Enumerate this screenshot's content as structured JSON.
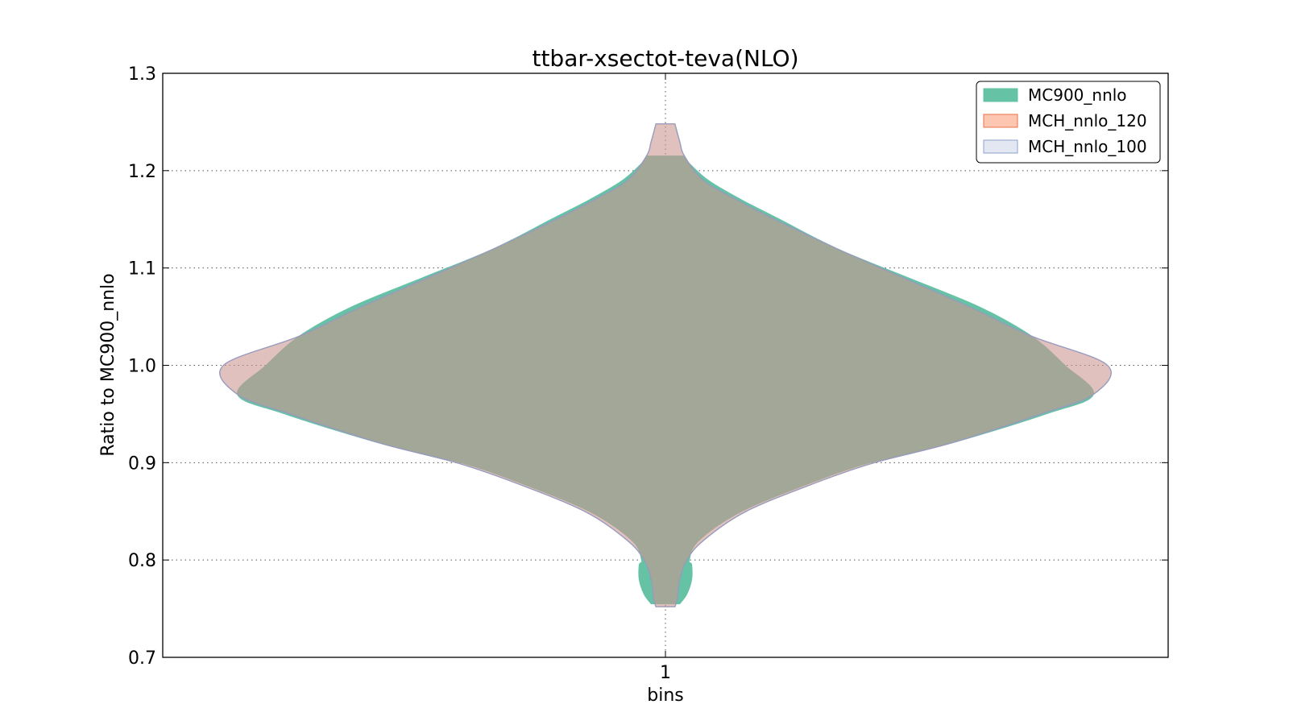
{
  "chart_data": {
    "type": "violin",
    "title": "ttbar-xsectot-teva(NLO)",
    "xlabel": "bins",
    "ylabel": "Ratio to MC900_nnlo",
    "categories": [
      "1"
    ],
    "ylim": [
      0.7,
      1.3
    ],
    "yticks": [
      0.7,
      0.8,
      0.9,
      1.0,
      1.1,
      1.2,
      1.3
    ],
    "ytick_labels": [
      "0.7",
      "0.8",
      "0.9",
      "1.0",
      "1.1",
      "1.2",
      "1.3"
    ],
    "grid": true,
    "legend_position": "top-right",
    "series": [
      {
        "name": "MC900_nnlo",
        "fill": "#66c2a5",
        "stroke": "#66c2a5",
        "opacity": 1.0,
        "profile": [
          [
            0.755,
            0.03
          ],
          [
            0.765,
            0.045
          ],
          [
            0.78,
            0.055
          ],
          [
            0.795,
            0.055
          ],
          [
            0.8,
            0.05
          ],
          [
            0.82,
            0.07
          ],
          [
            0.85,
            0.16
          ],
          [
            0.88,
            0.31
          ],
          [
            0.9,
            0.43
          ],
          [
            0.92,
            0.6
          ],
          [
            0.95,
            0.8
          ],
          [
            0.97,
            0.9
          ],
          [
            1.0,
            0.84
          ],
          [
            1.03,
            0.77
          ],
          [
            1.06,
            0.66
          ],
          [
            1.09,
            0.51
          ],
          [
            1.12,
            0.36
          ],
          [
            1.15,
            0.24
          ],
          [
            1.17,
            0.16
          ],
          [
            1.19,
            0.09
          ],
          [
            1.21,
            0.045
          ],
          [
            1.215,
            0.04
          ]
        ]
      },
      {
        "name": "MCH_nnlo_120",
        "fill": "#fc8d62",
        "stroke": "#e8704a",
        "opacity": 0.45,
        "profile": [
          [
            0.752,
            0.02
          ],
          [
            0.76,
            0.025
          ],
          [
            0.78,
            0.03
          ],
          [
            0.8,
            0.045
          ],
          [
            0.82,
            0.08
          ],
          [
            0.85,
            0.17
          ],
          [
            0.88,
            0.32
          ],
          [
            0.9,
            0.44
          ],
          [
            0.92,
            0.6
          ],
          [
            0.95,
            0.79
          ],
          [
            0.97,
            0.9
          ],
          [
            1.0,
            0.93
          ],
          [
            1.03,
            0.77
          ],
          [
            1.06,
            0.64
          ],
          [
            1.09,
            0.5
          ],
          [
            1.12,
            0.36
          ],
          [
            1.15,
            0.23
          ],
          [
            1.17,
            0.15
          ],
          [
            1.19,
            0.08
          ],
          [
            1.215,
            0.04
          ],
          [
            1.23,
            0.03
          ],
          [
            1.248,
            0.02
          ]
        ]
      },
      {
        "name": "MCH_nnlo_100",
        "fill": "#8da0cb",
        "stroke": "#8da0cb",
        "opacity": 0.25,
        "profile": [
          [
            0.752,
            0.02
          ],
          [
            0.76,
            0.025
          ],
          [
            0.78,
            0.03
          ],
          [
            0.8,
            0.045
          ],
          [
            0.82,
            0.08
          ],
          [
            0.85,
            0.17
          ],
          [
            0.88,
            0.32
          ],
          [
            0.9,
            0.44
          ],
          [
            0.92,
            0.6
          ],
          [
            0.95,
            0.79
          ],
          [
            0.97,
            0.9
          ],
          [
            1.0,
            0.93
          ],
          [
            1.03,
            0.77
          ],
          [
            1.06,
            0.64
          ],
          [
            1.09,
            0.5
          ],
          [
            1.12,
            0.36
          ],
          [
            1.15,
            0.23
          ],
          [
            1.17,
            0.15
          ],
          [
            1.19,
            0.08
          ],
          [
            1.215,
            0.04
          ],
          [
            1.23,
            0.03
          ],
          [
            1.248,
            0.02
          ]
        ]
      }
    ]
  }
}
